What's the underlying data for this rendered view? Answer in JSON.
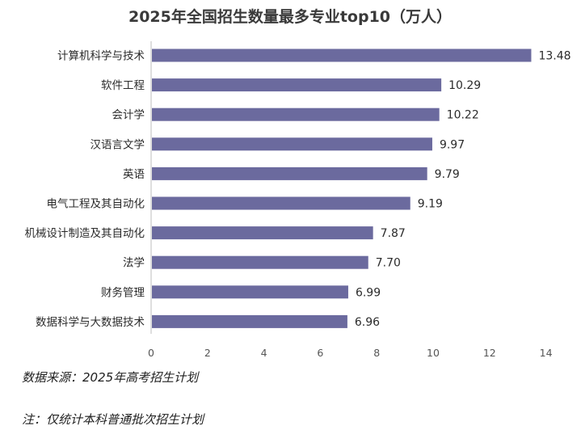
{
  "chart_data": {
    "type": "bar",
    "orientation": "horizontal",
    "title": "2025年全国招生数量最多专业top10（万人）",
    "categories": [
      "计算机科学与技术",
      "软件工程",
      "会计学",
      "汉语言文学",
      "英语",
      "电气工程及其自动化",
      "机械设计制造及其自动化",
      "法学",
      "财务管理",
      "数据科学与大数据技术"
    ],
    "values": [
      13.48,
      10.29,
      10.22,
      9.97,
      9.79,
      9.19,
      7.87,
      7.7,
      6.99,
      6.96
    ],
    "value_labels": [
      "13.48",
      "10.29",
      "10.22",
      "9.97",
      "9.79",
      "9.19",
      "7.87",
      "7.70",
      "6.99",
      "6.96"
    ],
    "xlim": [
      0,
      14
    ],
    "xticks": [
      0,
      2,
      4,
      6,
      8,
      10,
      12,
      14
    ],
    "grid": false,
    "bar_color": "#6b6a9e",
    "xlabel": "",
    "ylabel": ""
  },
  "notes": {
    "source": "数据来源：2025年高考招生计划",
    "remark": "注：仅统计本科普通批次招生计划"
  }
}
